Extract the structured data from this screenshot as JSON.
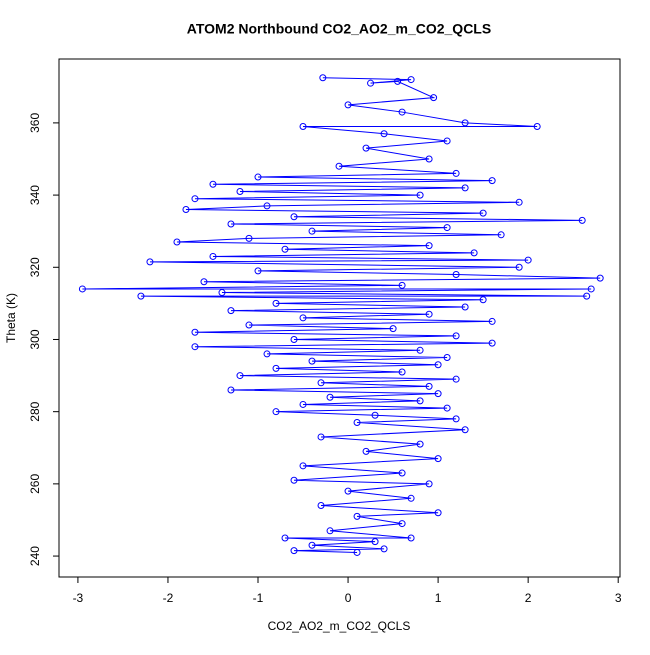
{
  "chart_data": {
    "type": "line",
    "markers": true,
    "title": "ATOM2 Northbound CO2_AO2_m_CO2_QCLS",
    "x_label": "CO2_AO2_m_CO2_QCLS",
    "y_label": "Theta (K)",
    "color": "#0000ff",
    "xlim": [
      -3.21,
      3.02
    ],
    "ylim": [
      234.2,
      377.7
    ],
    "xticks": [
      -3,
      -2,
      -1,
      0,
      1,
      2,
      3
    ],
    "yticks": [
      240,
      260,
      280,
      300,
      320,
      340,
      360
    ],
    "x": [
      -0.28,
      0.7,
      0.25,
      0.55,
      0.95,
      0,
      0.6,
      1.3,
      2.1,
      -0.5,
      0.4,
      1.1,
      0.2,
      0.9,
      -0.1,
      1.2,
      -1,
      1.6,
      -1.5,
      1.3,
      -1.2,
      0.8,
      -1.7,
      1.9,
      -0.9,
      -1.8,
      1.5,
      -0.6,
      2.6,
      -1.3,
      1.1,
      -0.4,
      1.7,
      -1.1,
      -1.9,
      0.9,
      -0.7,
      1.4,
      -1.5,
      2,
      -2.2,
      1.9,
      -1,
      1.2,
      2.8,
      -1.6,
      0.6,
      -2.95,
      2.7,
      -1.4,
      2.65,
      -2.3,
      1.5,
      -0.8,
      1.3,
      -1.3,
      0.9,
      -0.5,
      1.6,
      -1.1,
      0.5,
      -1.7,
      1.2,
      -0.6,
      1.6,
      -1.7,
      0.8,
      -0.9,
      1.1,
      -0.4,
      1.0,
      -0.8,
      0.6,
      -1.2,
      1.2,
      -0.3,
      0.9,
      -1.3,
      1.0,
      -0.2,
      0.8,
      -0.5,
      1.1,
      -0.8,
      0.3,
      1.2,
      0.1,
      1.3,
      -0.3,
      0.8,
      0.2,
      1.0,
      -0.5,
      0.6,
      -0.6,
      0.9,
      0,
      0.7,
      -0.3,
      1.0,
      0.1,
      0.6,
      -0.2,
      0.7,
      -0.7,
      0.3,
      -0.4,
      0.4,
      -0.6,
      0.1
    ],
    "values": [
      372.5,
      372,
      371,
      371.5,
      367,
      365,
      363,
      360,
      359,
      359,
      357,
      355,
      353,
      350,
      348,
      346,
      345,
      344,
      343,
      342,
      341,
      340,
      339,
      338,
      337,
      336,
      335,
      334,
      333,
      332,
      331,
      330,
      329,
      328,
      327,
      326,
      325,
      324,
      323,
      322,
      321.5,
      320,
      319,
      318,
      317,
      316,
      315,
      314,
      314,
      313,
      312,
      312,
      311,
      310,
      309,
      308,
      307,
      306,
      305,
      304,
      303,
      302,
      301,
      300,
      299,
      298,
      297,
      296,
      295,
      294,
      293,
      292,
      291,
      290,
      289,
      288,
      287,
      286,
      285,
      284,
      283,
      282,
      281,
      280,
      279,
      278,
      277,
      275,
      273,
      271,
      269,
      267,
      265,
      263,
      261,
      260,
      258,
      256,
      254,
      252,
      251,
      249,
      247,
      245,
      245,
      244,
      243,
      242,
      241.5,
      241
    ]
  }
}
